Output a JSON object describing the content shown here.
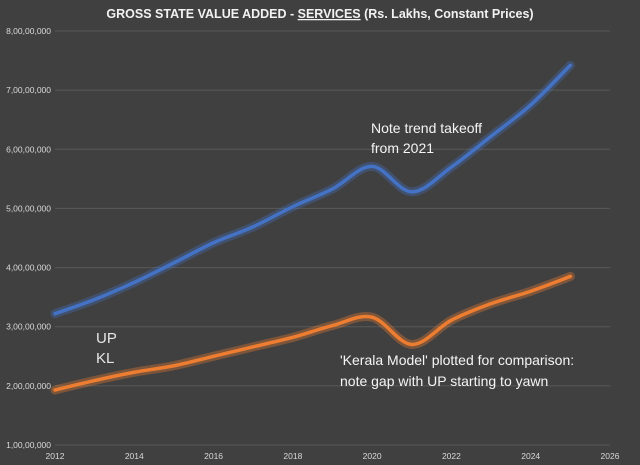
{
  "chart_data": {
    "type": "line",
    "title_prefix": "GROSS STATE VALUE ADDED - ",
    "title_emph": "SERVICES",
    "title_suffix": " (Rs. Lakhs, Constant Prices)",
    "xlabel": "",
    "ylabel": "",
    "xlim": [
      2012,
      2026
    ],
    "ylim": [
      10000000,
      80000000
    ],
    "x_ticks": [
      "2012",
      "2014",
      "2016",
      "2018",
      "2020",
      "2022",
      "2024",
      "2026"
    ],
    "y_ticks": [
      "1,00,00,000",
      "2,00,00,000",
      "3,00,00,000",
      "4,00,00,000",
      "5,00,00,000",
      "6,00,00,000",
      "7,00,00,000",
      "8,00,00,000"
    ],
    "grid": true,
    "legend_position": "left",
    "series": [
      {
        "name": "UP",
        "color": "#4472c4",
        "x": [
          2012,
          2013,
          2014,
          2015,
          2016,
          2017,
          2018,
          2019,
          2020,
          2021,
          2022,
          2023,
          2024,
          2025
        ],
        "values": [
          32200000,
          34600000,
          37500000,
          40800000,
          44200000,
          46900000,
          50300000,
          53300000,
          57100000,
          52800000,
          57000000,
          62200000,
          67500000,
          74200000
        ]
      },
      {
        "name": "KL",
        "color": "#ed7d31",
        "x": [
          2012,
          2013,
          2014,
          2015,
          2016,
          2017,
          2018,
          2019,
          2020,
          2021,
          2022,
          2023,
          2024,
          2025
        ],
        "values": [
          19300000,
          20900000,
          22300000,
          23400000,
          25000000,
          26600000,
          28200000,
          30200000,
          31600000,
          27000000,
          31100000,
          33900000,
          36000000,
          38500000
        ]
      }
    ],
    "annotations": [
      {
        "lines": [
          "Note trend takeoff",
          "from 2021"
        ]
      },
      {
        "lines": [
          "'Kerala Model' plotted for comparison:",
          "note gap with UP starting to yawn"
        ]
      }
    ]
  }
}
